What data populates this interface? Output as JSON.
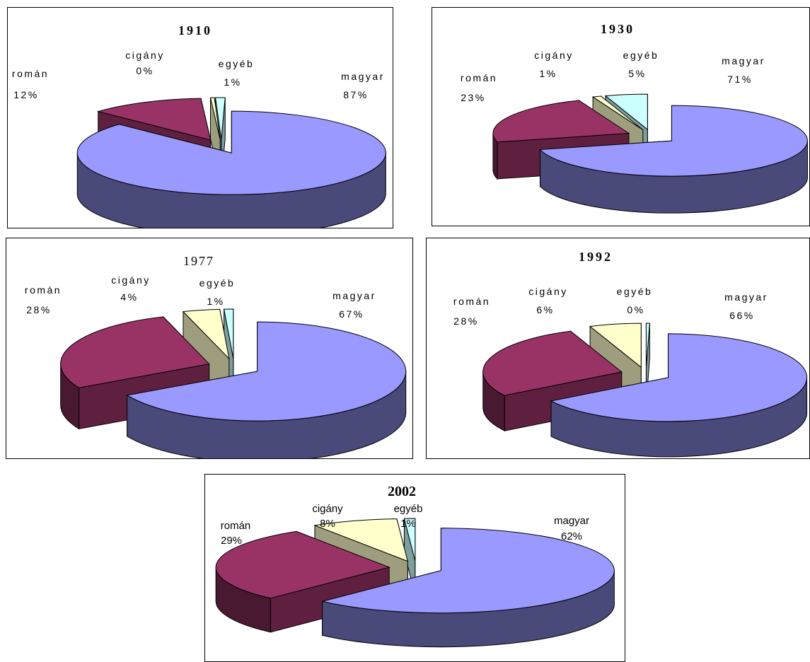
{
  "colors": {
    "magyar": "#9999ff",
    "roman": "#993366",
    "cigany": "#ffffcc",
    "egyeb": "#ccffff",
    "gap": "#99997a"
  },
  "chart_data": [
    {
      "type": "pie",
      "title": "1910",
      "categories": [
        "magyar",
        "román",
        "cigány",
        "egyéb"
      ],
      "values": [
        87,
        12,
        0,
        1
      ],
      "labels": [
        "87%",
        "12%",
        "0%",
        "1%"
      ]
    },
    {
      "type": "pie",
      "title": "1930",
      "categories": [
        "magyar",
        "román",
        "cigány",
        "egyéb"
      ],
      "values": [
        71,
        23,
        1,
        5
      ],
      "labels": [
        "71%",
        "23%",
        "1%",
        "5%"
      ]
    },
    {
      "type": "pie",
      "title": "1977",
      "categories": [
        "magyar",
        "román",
        "cigány",
        "egyéb"
      ],
      "values": [
        67,
        28,
        4,
        1
      ],
      "labels": [
        "67%",
        "28%",
        "4%",
        "1%"
      ]
    },
    {
      "type": "pie",
      "title": "1992",
      "categories": [
        "magyar",
        "román",
        "cigány",
        "egyéb"
      ],
      "values": [
        66,
        28,
        6,
        0
      ],
      "labels": [
        "66%",
        "28%",
        "6%",
        "0%"
      ]
    },
    {
      "type": "pie",
      "title": "2002",
      "categories": [
        "magyar",
        "román",
        "cigány",
        "egyéb"
      ],
      "values": [
        62,
        29,
        8,
        1
      ],
      "labels": [
        "62%",
        "29%",
        "8%",
        "1%"
      ]
    }
  ]
}
